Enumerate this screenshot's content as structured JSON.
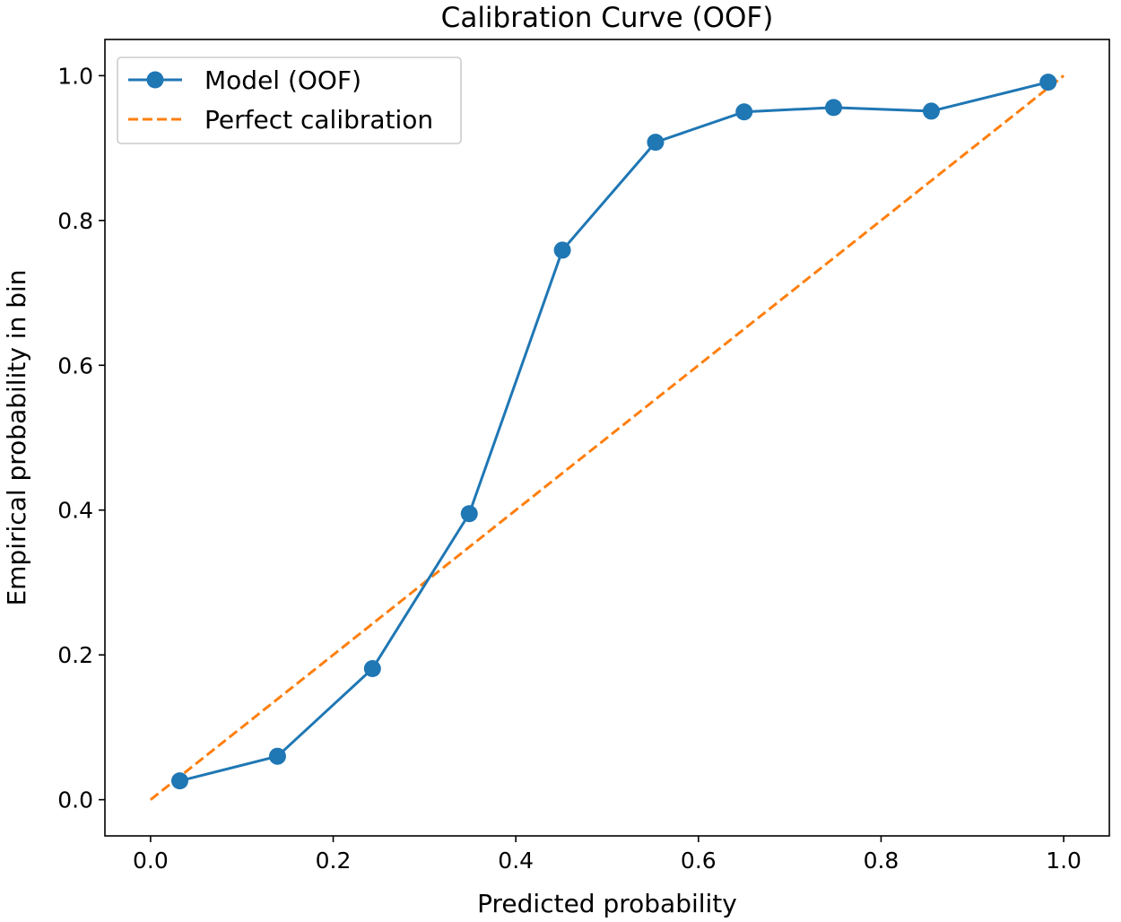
{
  "chart_data": {
    "type": "line",
    "title": "Calibration Curve (OOF)",
    "xlabel": "Predicted probability",
    "ylabel": "Empirical probability in bin",
    "xlim": [
      -0.05,
      1.05
    ],
    "ylim": [
      -0.05,
      1.05
    ],
    "grid": false,
    "legend_position": "top-left",
    "x_ticks": [
      "0.0",
      "0.2",
      "0.4",
      "0.6",
      "0.8",
      "1.0"
    ],
    "y_ticks": [
      "0.0",
      "0.2",
      "0.4",
      "0.6",
      "0.8",
      "1.0"
    ],
    "series": [
      {
        "name": "Model (OOF)",
        "style": "solid-markers",
        "color": "#1f77b4",
        "x": [
          0.032,
          0.139,
          0.243,
          0.349,
          0.451,
          0.553,
          0.65,
          0.748,
          0.855,
          0.983
        ],
        "y": [
          0.026,
          0.06,
          0.181,
          0.395,
          0.759,
          0.908,
          0.95,
          0.956,
          0.951,
          0.991
        ]
      },
      {
        "name": "Perfect calibration",
        "style": "dashed",
        "color": "#ff7f0e",
        "x": [
          0.0,
          1.0
        ],
        "y": [
          0.0,
          1.0
        ]
      }
    ]
  }
}
